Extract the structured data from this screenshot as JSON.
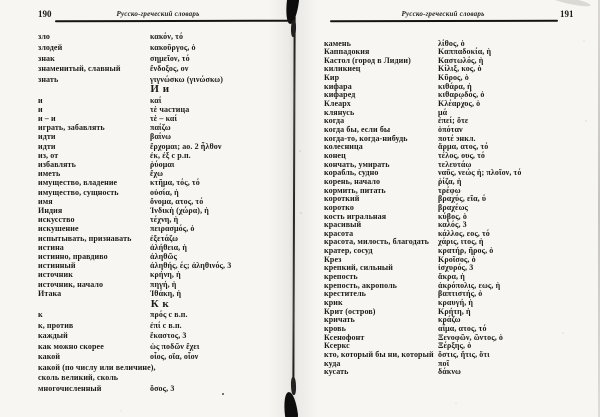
{
  "colors": {
    "paper": "#f7f6f2",
    "ink": "#1d1b18"
  },
  "left_page": {
    "page_number": "190",
    "running_title": "Русско-греческий словарь",
    "sections": [
      {
        "heading": "",
        "entries": [
          {
            "ru": "зло",
            "el": "κακόν, τό"
          },
          {
            "ru": "злодей",
            "el": "κακοῦργος, ὁ"
          },
          {
            "ru": "знак",
            "el": "σημεῖον, τό"
          },
          {
            "ru": "знаменитый, славный",
            "el": "ἔνδοξος, ον"
          },
          {
            "ru": "знать",
            "el": "γιγνώσκω (γινώσκω)"
          }
        ]
      },
      {
        "heading": "И и",
        "entries": [
          {
            "ru": "и",
            "el": "καί"
          },
          {
            "ru": "и",
            "el": "τὲ частица"
          },
          {
            "ru": "и – и",
            "el": "τὲ – καί"
          },
          {
            "ru": "играть, забавлять",
            "el": "παίζω"
          },
          {
            "ru": "идти",
            "el": "βαίνω"
          },
          {
            "ru": "идти",
            "el": "ἔρχομαι; ао. 2 ἦλθον"
          },
          {
            "ru": "из, от",
            "el": "ἐκ, ἐξ с р.п."
          },
          {
            "ru": "избавлять",
            "el": "ῥύομαι"
          },
          {
            "ru": "иметь",
            "el": "ἔχω"
          },
          {
            "ru": "имущество, владение",
            "el": "κτῆμα, τός, τό"
          },
          {
            "ru": "имущество, сущность",
            "el": "οὐσία, ἡ"
          },
          {
            "ru": "имя",
            "el": "ὄνομα, ατος, τό"
          },
          {
            "ru": "Индия",
            "el": "Ἰνδικὴ (χώρα), ἡ"
          },
          {
            "ru": "искусство",
            "el": "τέχνη, ἡ"
          },
          {
            "ru": "искушение",
            "el": "πειρασμός, ὁ"
          },
          {
            "ru": "испытывать, признавать",
            "el": "ἐξετάζω"
          },
          {
            "ru": "истина",
            "el": "ἀλήθεια, ἡ"
          },
          {
            "ru": "истинно, правдиво",
            "el": "ἀληθῶς"
          },
          {
            "ru": "истинный",
            "el": "ἀληθής, ές; ἀληθινός, 3"
          },
          {
            "ru": "источник",
            "el": "κρήνη, ἡ"
          },
          {
            "ru": "источник, начало",
            "el": "πηγή, ἡ"
          },
          {
            "ru": "Итака",
            "el": "Ἰθάκη, ἡ"
          }
        ]
      },
      {
        "heading": "К к",
        "entries": [
          {
            "ru": "к",
            "el": "πρός с в.п."
          },
          {
            "ru": "к, против",
            "el": "ἐπί с в.п."
          },
          {
            "ru": "каждый",
            "el": "ἕκαστος, 3"
          },
          {
            "ru": "как можно скорее",
            "el": "ὡς ποδῶν ἔχει"
          },
          {
            "ru": "какой",
            "el": "οἷος, οἵα, οἷον"
          },
          {
            "ru": "какой (по числу или величине),",
            "el": ""
          },
          {
            "ru": "сколь великий, сколь",
            "el": ""
          },
          {
            "ru": "многочисленный",
            "el": "ὅσος, 3"
          }
        ]
      }
    ]
  },
  "right_page": {
    "page_number": "191",
    "running_title": "Русско-греческий словарь",
    "sections": [
      {
        "heading": "",
        "entries": [
          {
            "ru": "камень",
            "el": "λίθος, ὁ"
          },
          {
            "ru": "Каппадокия",
            "el": "Καππαδοκία, ἡ"
          },
          {
            "ru": "Кастол (город в Лидии)",
            "el": "Καστωλός, ἡ"
          },
          {
            "ru": "киликиец",
            "el": "Κίλιξ, κος, ὁ"
          },
          {
            "ru": "Кир",
            "el": "Κῦρος, ὁ"
          },
          {
            "ru": "кифара",
            "el": "κιθάρα, ἡ"
          },
          {
            "ru": "кифаред",
            "el": "κιθαρῳδός, ὁ"
          },
          {
            "ru": "Клеарх",
            "el": "Κλέαρχος, ὁ"
          },
          {
            "ru": "клянусь",
            "el": "μά"
          },
          {
            "ru": "когда",
            "el": "ἐπεί; ὅτε"
          },
          {
            "ru": "когда бы, если бы",
            "el": "ὁπόταν"
          },
          {
            "ru": "когда-то, когда-нибудь",
            "el": "ποτέ энкл."
          },
          {
            "ru": "колесница",
            "el": "ἅρμα, ατος, τό"
          },
          {
            "ru": "конец",
            "el": "τέλος, ους, τό"
          },
          {
            "ru": "кончать, умирать",
            "el": "τελευτάω"
          },
          {
            "ru": "корабль, судно",
            "el": "ναῦς, νεώς ἡ; πλοῖον, τό"
          },
          {
            "ru": "корень, начало",
            "el": "ῥίζα, ἡ"
          },
          {
            "ru": "кормить, питать",
            "el": "τρέφω"
          },
          {
            "ru": "короткий",
            "el": "βραχύς, εῖα, ύ"
          },
          {
            "ru": "коротко",
            "el": "βραχέως"
          },
          {
            "ru": "кость игральная",
            "el": "κύβος, ὁ"
          },
          {
            "ru": "красивый",
            "el": "καλός, 3"
          },
          {
            "ru": "красота",
            "el": "κάλλος, εος, τό"
          },
          {
            "ru": "красота, милость, благодать",
            "el": "χάρις, ιτος, ἡ"
          },
          {
            "ru": "кратер, сосуд",
            "el": "κρατήρ, ῆρος, ὁ"
          },
          {
            "ru": "Крез",
            "el": "Κροῖσος, ὁ"
          },
          {
            "ru": "крепкий, сильный",
            "el": "ἰσχυρός, 3"
          },
          {
            "ru": "крепость",
            "el": "ἄκρα, ἡ"
          },
          {
            "ru": "крепость, акрополь",
            "el": "ἀκρόπολις, εως, ἡ"
          },
          {
            "ru": "креститель",
            "el": "βαπτιστής, ὁ"
          },
          {
            "ru": "крик",
            "el": "κραυγή, ἡ"
          },
          {
            "ru": "Крит (остров)",
            "el": "Κρήτη, ἡ"
          },
          {
            "ru": "кричать",
            "el": "κράζω"
          },
          {
            "ru": "кровь",
            "el": "αἷμα, ατος, τό"
          },
          {
            "ru": "Ксенофонт",
            "el": "Ξενοφῶν, ῶντος, ὁ"
          },
          {
            "ru": "Ксеркс",
            "el": "Ξέρξης, ὁ"
          },
          {
            "ru": "кто, который бы ни, который",
            "el": "ὅστις, ἥτις, ὅτι"
          },
          {
            "ru": "куда",
            "el": "ποῖ"
          },
          {
            "ru": "кусать",
            "el": "δάκνω"
          }
        ]
      }
    ]
  }
}
